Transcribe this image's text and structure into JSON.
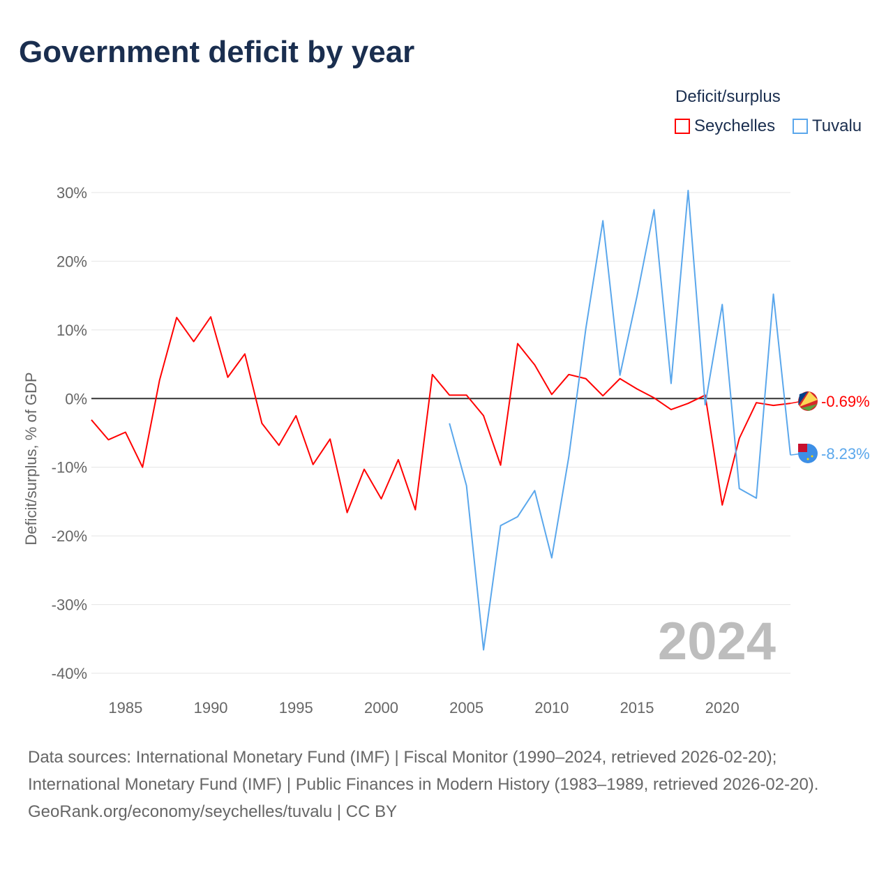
{
  "title": "Government deficit by year",
  "legend": {
    "title": "Deficit/surplus",
    "items": [
      {
        "name": "Seychelles",
        "color": "#ff0000"
      },
      {
        "name": "Tuvalu",
        "color": "#5aa7ec"
      }
    ]
  },
  "footer": {
    "sources": "Data sources: International Monetary Fund (IMF) | Fiscal Monitor (1990–2024, retrieved 2026-02-20); International Monetary Fund (IMF) | Public Finances in Modern History (1983–1989, retrieved 2026-02-20).",
    "credit": "GeoRank.org/economy/seychelles/tuvalu | CC BY"
  },
  "chart_data": {
    "type": "line",
    "title": "Government deficit by year",
    "ylabel": "Deficit/surplus, % of GDP",
    "xlim": [
      1983,
      2024
    ],
    "ylim": [
      -40,
      30
    ],
    "yticks": [
      30,
      20,
      10,
      0,
      -10,
      -20,
      -30,
      -40
    ],
    "ytick_labels": [
      "30%",
      "20%",
      "10%",
      "0%",
      "-10%",
      "-20%",
      "-30%",
      "-40%"
    ],
    "xticks": [
      1985,
      1990,
      1995,
      2000,
      2005,
      2010,
      2015,
      2020
    ],
    "xtick_labels": [
      "1985",
      "1990",
      "1995",
      "2000",
      "2005",
      "2010",
      "2015",
      "2020"
    ],
    "year_watermark": "2024",
    "series": [
      {
        "name": "Seychelles",
        "color": "#ff0000",
        "end_label": "-0.69%",
        "start": 1983,
        "values": [
          -3.1,
          -6.0,
          -4.9,
          -10.0,
          2.7,
          11.8,
          8.3,
          11.9,
          3.1,
          6.5,
          -3.6,
          -6.8,
          -2.5,
          -9.6,
          -5.9,
          -16.6,
          -10.3,
          -14.6,
          -8.9,
          -16.2,
          3.5,
          0.5,
          0.5,
          -2.5,
          -9.7,
          8.0,
          4.9,
          0.6,
          3.5,
          2.9,
          0.4,
          2.9,
          1.4,
          0.1,
          -1.6,
          -0.7,
          0.5,
          -15.5,
          -5.8,
          -0.6,
          -1.0,
          -0.69
        ]
      },
      {
        "name": "Tuvalu",
        "color": "#5aa7ec",
        "end_label": "-8.23%",
        "start": 2004,
        "values": [
          -3.6,
          -12.7,
          -36.6,
          -18.5,
          -17.2,
          -13.4,
          -23.2,
          -8.5,
          10.2,
          25.9,
          3.4,
          14.9,
          27.5,
          2.2,
          30.3,
          -0.9,
          13.7,
          -13.1,
          -14.5,
          15.2,
          -8.23
        ]
      }
    ]
  }
}
